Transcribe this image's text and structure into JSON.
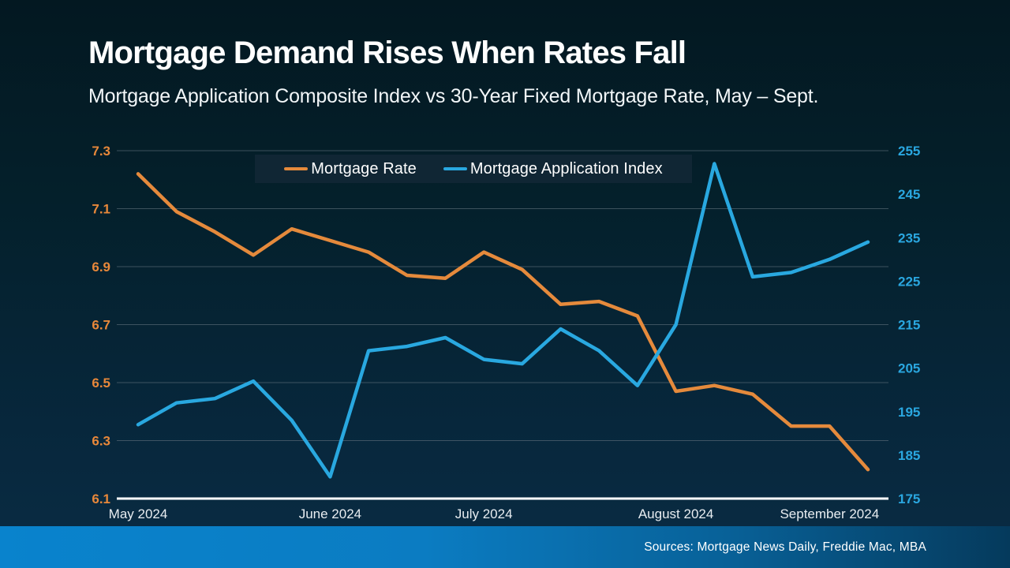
{
  "slide": {
    "title": "Mortgage Demand Rises When Rates Fall",
    "subtitle": "Mortgage Application Composite Index vs 30-Year Fixed Mortgage Rate, May – Sept.",
    "source_note": "Sources: Mortgage News Daily, Freddie Mac, MBA"
  },
  "legend": {
    "items": [
      {
        "label": "Mortgage Rate",
        "color": "#E58A3C"
      },
      {
        "label": "Mortgage Application Index",
        "color": "#29A8E0"
      }
    ]
  },
  "colors": {
    "background_top": "#031821",
    "background_bottom": "#0a2c44",
    "gridline": "#6b7a84",
    "axis_line": "#ffffff",
    "left_axis_labels": "#E8883A",
    "right_axis_labels": "#2AA7E0",
    "source_bar_left": "#0983cd",
    "source_bar_right": "#053a5c"
  },
  "chart_data": {
    "type": "line",
    "title": "Mortgage Demand Rises When Rates Fall",
    "subtitle": "Mortgage Application Composite Index vs 30-Year Fixed Mortgage Rate, May – Sept.",
    "n_points": 20,
    "x_axis": {
      "labels": [
        "May 2024",
        "June 2024",
        "July 2024",
        "August 2024",
        "September 2024"
      ],
      "label_point_indices": [
        0,
        5,
        9,
        14,
        18
      ]
    },
    "y_left": {
      "name": "30-Year Fixed Mortgage Rate",
      "min": 6.1,
      "max": 7.3,
      "tick_labels": [
        "7.3",
        "7.1",
        "6.9",
        "6.7",
        "6.5",
        "6.3",
        "6.1"
      ],
      "tick_values": [
        7.3,
        7.1,
        6.9,
        6.7,
        6.5,
        6.3,
        6.1
      ]
    },
    "y_right": {
      "name": "Mortgage Application Composite Index",
      "min": 175,
      "max": 255,
      "tick_labels": [
        "255",
        "245",
        "235",
        "225",
        "215",
        "205",
        "195",
        "185",
        "175"
      ],
      "tick_values": [
        255,
        245,
        235,
        225,
        215,
        205,
        195,
        185,
        175
      ]
    },
    "grid": true,
    "legend_position": "top-center",
    "series": [
      {
        "name": "Mortgage Rate",
        "axis": "left",
        "color": "#E58A3C",
        "values": [
          7.22,
          7.09,
          7.02,
          6.94,
          7.03,
          6.99,
          6.95,
          6.87,
          6.86,
          6.95,
          6.89,
          6.77,
          6.78,
          6.73,
          6.47,
          6.49,
          6.46,
          6.35,
          6.35,
          6.2
        ]
      },
      {
        "name": "Mortgage Application Index",
        "axis": "right",
        "color": "#29A8E0",
        "values": [
          192,
          197,
          198,
          202,
          193,
          180,
          209,
          210,
          212,
          207,
          206,
          214,
          209,
          201,
          215,
          252,
          226,
          227,
          230,
          234
        ]
      }
    ]
  }
}
